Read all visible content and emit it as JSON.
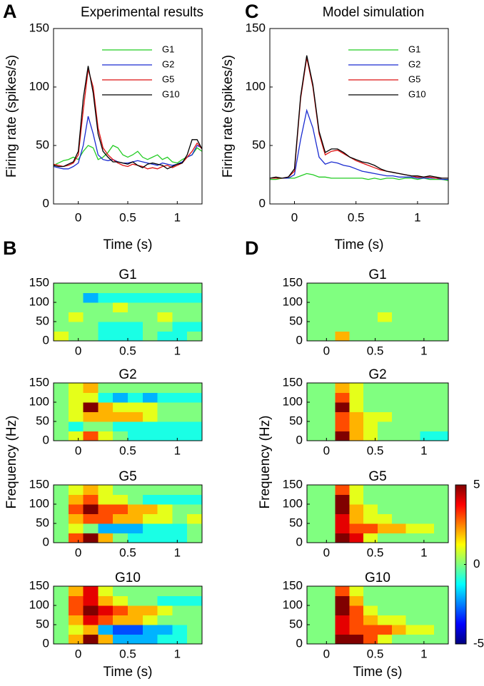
{
  "chart_data": [
    {
      "type": "line",
      "panel": "A",
      "title": "Experimental results",
      "xlabel": "Time (s)",
      "ylabel": "Firing rate (spikes/s)",
      "xlim": [
        -0.25,
        1.25
      ],
      "xticks": [
        0,
        0.5,
        1
      ],
      "ylim": [
        0,
        150
      ],
      "yticks": [
        0,
        50,
        100,
        150
      ],
      "legend": "upper right",
      "x": [
        -0.25,
        -0.2,
        -0.15,
        -0.1,
        -0.05,
        0,
        0.05,
        0.1,
        0.15,
        0.2,
        0.25,
        0.3,
        0.35,
        0.4,
        0.45,
        0.5,
        0.55,
        0.6,
        0.65,
        0.7,
        0.75,
        0.8,
        0.85,
        0.9,
        0.95,
        1,
        1.05,
        1.1,
        1.15,
        1.2,
        1.25
      ],
      "series": [
        {
          "name": "G1",
          "color": "#22cc22",
          "values": [
            33,
            35,
            37,
            38,
            40,
            38,
            45,
            50,
            48,
            38,
            40,
            44,
            50,
            48,
            42,
            40,
            42,
            45,
            40,
            38,
            40,
            42,
            38,
            40,
            36,
            35,
            38,
            40,
            42,
            48,
            45
          ]
        },
        {
          "name": "G2",
          "color": "#1a2bd0",
          "values": [
            32,
            31,
            30,
            30,
            32,
            35,
            50,
            75,
            60,
            42,
            38,
            37,
            38,
            36,
            35,
            35,
            36,
            37,
            36,
            35,
            34,
            33,
            35,
            34,
            33,
            34,
            36,
            40,
            42,
            50,
            48
          ]
        },
        {
          "name": "G5",
          "color": "#dd1111",
          "values": [
            34,
            33,
            32,
            33,
            35,
            42,
            80,
            115,
            100,
            65,
            48,
            42,
            38,
            35,
            33,
            32,
            34,
            33,
            32,
            30,
            31,
            30,
            32,
            33,
            31,
            33,
            35,
            40,
            45,
            52,
            47
          ]
        },
        {
          "name": "G10",
          "color": "#000000",
          "values": [
            33,
            32,
            32,
            34,
            36,
            45,
            90,
            118,
            95,
            60,
            45,
            40,
            36,
            36,
            35,
            34,
            36,
            33,
            31,
            34,
            35,
            34,
            33,
            30,
            32,
            34,
            35,
            42,
            55,
            55,
            47
          ]
        }
      ]
    },
    {
      "type": "line",
      "panel": "C",
      "title": "Model simulation",
      "xlabel": "Time (s)",
      "ylabel": "Firing rate (spikes/s)",
      "xlim": [
        -0.2,
        1.25
      ],
      "xticks": [
        0,
        0.5,
        1
      ],
      "ylim": [
        0,
        150
      ],
      "yticks": [
        0,
        50,
        100,
        150
      ],
      "legend": "upper right",
      "x": [
        -0.2,
        -0.15,
        -0.1,
        -0.05,
        0,
        0.05,
        0.1,
        0.15,
        0.2,
        0.25,
        0.3,
        0.35,
        0.4,
        0.45,
        0.5,
        0.55,
        0.6,
        0.65,
        0.7,
        0.75,
        0.8,
        0.85,
        0.9,
        0.95,
        1,
        1.05,
        1.1,
        1.15,
        1.2,
        1.25
      ],
      "series": [
        {
          "name": "G1",
          "color": "#22cc22",
          "values": [
            21,
            21,
            22,
            22,
            22,
            24,
            26,
            25,
            23,
            23,
            22,
            22,
            22,
            22,
            22,
            22,
            21,
            22,
            21,
            22,
            22,
            21,
            22,
            22,
            21,
            22,
            21,
            21,
            21,
            20
          ]
        },
        {
          "name": "G2",
          "color": "#1a2bd0",
          "values": [
            22,
            22,
            22,
            22,
            25,
            55,
            80,
            65,
            40,
            34,
            36,
            35,
            33,
            32,
            30,
            28,
            27,
            26,
            25,
            24,
            24,
            23,
            23,
            23,
            22,
            22,
            22,
            22,
            21,
            21
          ]
        },
        {
          "name": "G5",
          "color": "#dd1111",
          "values": [
            22,
            22,
            22,
            23,
            28,
            90,
            125,
            100,
            60,
            42,
            45,
            46,
            43,
            40,
            37,
            35,
            33,
            31,
            29,
            28,
            27,
            26,
            25,
            24,
            23,
            23,
            23,
            22,
            22,
            22
          ]
        },
        {
          "name": "G10",
          "color": "#000000",
          "values": [
            22,
            23,
            22,
            23,
            30,
            92,
            127,
            102,
            62,
            44,
            47,
            47,
            44,
            40,
            38,
            36,
            35,
            33,
            30,
            28,
            27,
            26,
            25,
            24,
            24,
            23,
            24,
            23,
            22,
            22
          ]
        }
      ]
    },
    {
      "type": "heatmap",
      "panel": "B",
      "title": "G1",
      "xlim": [
        -0.25,
        1.25
      ],
      "xticks": [
        0,
        0.5,
        1
      ],
      "ylim": [
        0,
        150
      ],
      "yticks": [
        0,
        50,
        100,
        150
      ],
      "z": [
        [
          1,
          0,
          0,
          -1,
          -1,
          -1,
          0,
          -1,
          -1,
          0
        ],
        [
          0,
          0,
          0,
          -1,
          -1,
          -1,
          0,
          0,
          -1,
          -1
        ],
        [
          0,
          1,
          0,
          0,
          0,
          0,
          0,
          1,
          0,
          0
        ],
        [
          0,
          0,
          0,
          0,
          1,
          0,
          0,
          0,
          0,
          0
        ],
        [
          0,
          0,
          -2,
          -1,
          -1,
          -1,
          -1,
          -1,
          -1,
          -1
        ],
        [
          0,
          0,
          0,
          0,
          0,
          0,
          0,
          0,
          0,
          0
        ]
      ]
    },
    {
      "type": "heatmap",
      "title": "G2",
      "ylabel": "Frequency (Hz)",
      "xlim": [
        -0.25,
        1.25
      ],
      "xticks": [
        0,
        0.5,
        1
      ],
      "ylim": [
        0,
        150
      ],
      "yticks": [
        0,
        50,
        100,
        150
      ],
      "z": [
        [
          0,
          1,
          3,
          1,
          0,
          -1,
          -1,
          -1,
          -1,
          -1
        ],
        [
          0,
          -1,
          0,
          0,
          -1,
          -1,
          -1,
          -1,
          -1,
          -1
        ],
        [
          0,
          1,
          2,
          2,
          2,
          2,
          1,
          0,
          0,
          0
        ],
        [
          0,
          1,
          5,
          2,
          1,
          1,
          1,
          0,
          0,
          0
        ],
        [
          0,
          1,
          1,
          -1,
          -2,
          -1,
          -2,
          -1,
          -1,
          -1
        ],
        [
          0,
          1,
          2,
          0,
          0,
          0,
          0,
          0,
          0,
          0
        ]
      ]
    },
    {
      "type": "heatmap",
      "title": "G5",
      "xlim": [
        -0.25,
        1.25
      ],
      "xticks": [
        0,
        0.5,
        1
      ],
      "ylim": [
        0,
        150
      ],
      "yticks": [
        0,
        50,
        100,
        150
      ],
      "z": [
        [
          0,
          3,
          5,
          2,
          0,
          -1,
          -1,
          -1,
          -1,
          0
        ],
        [
          0,
          1,
          0,
          -2,
          -2,
          -2,
          -1,
          -1,
          -1,
          0
        ],
        [
          0,
          2,
          3,
          3,
          2,
          2,
          1,
          1,
          0,
          1
        ],
        [
          0,
          3,
          5,
          3,
          3,
          2,
          2,
          1,
          0,
          0
        ],
        [
          0,
          2,
          3,
          1,
          1,
          0,
          -1,
          -1,
          -1,
          -1
        ],
        [
          0,
          1,
          2,
          1,
          0,
          0,
          0,
          0,
          0,
          0
        ]
      ]
    },
    {
      "type": "heatmap",
      "title": "G10",
      "xlabel": "Time (s)",
      "xlim": [
        -0.25,
        1.25
      ],
      "xticks": [
        0,
        0.5,
        1
      ],
      "ylim": [
        0,
        150
      ],
      "yticks": [
        0,
        50,
        100,
        150
      ],
      "z": [
        [
          0,
          2,
          5,
          2,
          -2,
          -2,
          -2,
          -1,
          -1,
          0
        ],
        [
          0,
          1,
          2,
          -2,
          -3,
          -3,
          -2,
          -2,
          -1,
          0
        ],
        [
          0,
          2,
          4,
          3,
          2,
          2,
          1,
          0,
          0,
          0
        ],
        [
          0,
          3,
          5,
          4,
          3,
          2,
          2,
          1,
          0,
          0
        ],
        [
          0,
          3,
          4,
          2,
          1,
          0,
          0,
          -1,
          -1,
          -1
        ],
        [
          0,
          2,
          4,
          1,
          0,
          0,
          0,
          0,
          0,
          0
        ]
      ]
    },
    {
      "type": "heatmap",
      "panel": "D",
      "title": "G1",
      "xlim": [
        -0.2,
        1.25
      ],
      "xticks": [
        0,
        0.5,
        1
      ],
      "ylim": [
        0,
        150
      ],
      "yticks": [
        0,
        50,
        100,
        150
      ],
      "z": [
        [
          0,
          0,
          2,
          0,
          0,
          0,
          0,
          0,
          0,
          0
        ],
        [
          0,
          0,
          0,
          0,
          0,
          0,
          0,
          0,
          0,
          0
        ],
        [
          0,
          0,
          0,
          0,
          0,
          1,
          0,
          0,
          0,
          0
        ],
        [
          0,
          0,
          0,
          0,
          0,
          0,
          0,
          0,
          0,
          0
        ],
        [
          0,
          0,
          0,
          0,
          0,
          0,
          0,
          0,
          0,
          0
        ],
        [
          0,
          0,
          0,
          0,
          0,
          0,
          0,
          0,
          0,
          0
        ]
      ]
    },
    {
      "type": "heatmap",
      "title": "G2",
      "ylabel": "Frequency (Hz)",
      "xlim": [
        -0.2,
        1.25
      ],
      "xticks": [
        0,
        0.5,
        1
      ],
      "ylim": [
        0,
        150
      ],
      "yticks": [
        0,
        50,
        100,
        150
      ],
      "z": [
        [
          0,
          0,
          5,
          2,
          1,
          0,
          0,
          0,
          -1,
          -1
        ],
        [
          0,
          0,
          3,
          2,
          1,
          0,
          0,
          0,
          0,
          0
        ],
        [
          0,
          0,
          3,
          2,
          1,
          1,
          0,
          0,
          0,
          0
        ],
        [
          0,
          0,
          5,
          1,
          0,
          0,
          0,
          0,
          0,
          0
        ],
        [
          0,
          0,
          3,
          1,
          0,
          0,
          0,
          0,
          0,
          0
        ],
        [
          0,
          0,
          2,
          1,
          0,
          0,
          0,
          0,
          0,
          0
        ]
      ]
    },
    {
      "type": "heatmap",
      "title": "G5",
      "xlim": [
        -0.2,
        1.25
      ],
      "xticks": [
        0,
        0.5,
        1
      ],
      "ylim": [
        0,
        150
      ],
      "yticks": [
        0,
        50,
        100,
        150
      ],
      "z": [
        [
          0,
          0,
          5,
          4,
          1,
          0,
          0,
          0,
          0,
          0
        ],
        [
          0,
          0,
          4,
          3,
          3,
          2,
          2,
          1,
          1,
          0
        ],
        [
          0,
          0,
          4,
          2,
          1,
          1,
          0,
          0,
          0,
          0
        ],
        [
          0,
          0,
          5,
          2,
          1,
          0,
          0,
          0,
          0,
          0
        ],
        [
          0,
          0,
          5,
          1,
          0,
          0,
          0,
          0,
          0,
          0
        ],
        [
          0,
          0,
          3,
          1,
          0,
          0,
          0,
          0,
          0,
          0
        ]
      ]
    },
    {
      "type": "heatmap",
      "title": "G10",
      "xlabel": "Time (s)",
      "xlim": [
        -0.2,
        1.25
      ],
      "xticks": [
        0,
        0.5,
        1
      ],
      "ylim": [
        0,
        150
      ],
      "yticks": [
        0,
        50,
        100,
        150
      ],
      "z": [
        [
          0,
          0,
          5,
          5,
          3,
          1,
          0,
          0,
          0,
          0
        ],
        [
          0,
          0,
          4,
          3,
          3,
          3,
          2,
          1,
          1,
          0
        ],
        [
          0,
          0,
          4,
          3,
          2,
          1,
          1,
          0,
          0,
          0
        ],
        [
          0,
          0,
          5,
          3,
          1,
          0,
          0,
          0,
          0,
          0
        ],
        [
          0,
          0,
          5,
          2,
          0,
          0,
          0,
          0,
          0,
          0
        ],
        [
          0,
          0,
          3,
          1,
          0,
          0,
          0,
          0,
          0,
          0
        ]
      ]
    },
    {
      "type": "colorbar",
      "colormap": "jet",
      "clim": [
        -5,
        5
      ],
      "cticks": [
        5,
        0,
        -5
      ]
    }
  ]
}
